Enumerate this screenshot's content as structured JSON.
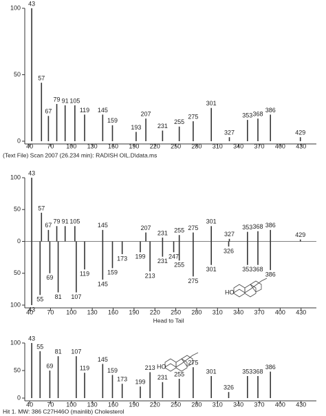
{
  "chart_data": [
    {
      "type": "spectrum",
      "caption": "(Text File) Scan 2007 (26.234 min): RADISH OIL.D\\data.ms",
      "xlim": [
        33,
        452
      ],
      "xticks": [
        40,
        70,
        100,
        130,
        160,
        190,
        220,
        250,
        280,
        310,
        340,
        370,
        400,
        430
      ],
      "ylim": [
        0,
        100
      ],
      "yticks": [
        0,
        50,
        100
      ],
      "color": "#333333",
      "series": [
        {
          "x": [
            43,
            57,
            67,
            79,
            91,
            105,
            119,
            145,
            159,
            193,
            207,
            231,
            255,
            275,
            301,
            327,
            353,
            368,
            386,
            429
          ],
          "values": [
            100,
            44,
            19,
            28,
            27,
            27,
            20,
            20,
            12,
            7,
            17,
            8,
            11,
            15,
            25,
            3,
            16,
            17,
            20,
            3
          ]
        }
      ]
    },
    {
      "type": "spectrum",
      "caption": "Head to Tail",
      "structure_label": "HO",
      "xlim": [
        33,
        452
      ],
      "xticks": [
        40,
        70,
        100,
        130,
        160,
        190,
        220,
        250,
        280,
        310,
        340,
        370,
        400,
        430
      ],
      "ylim": [
        -100,
        100
      ],
      "yticks": [
        {
          "value": -100,
          "label": "100"
        },
        {
          "value": -50,
          "label": "50"
        },
        0,
        50,
        100
      ],
      "color": "#333333",
      "series": [
        {
          "x": [
            43,
            57,
            67,
            79,
            91,
            105,
            145,
            207,
            231,
            255,
            275,
            301,
            327,
            353,
            368,
            386,
            429
          ],
          "values": [
            100,
            45,
            18,
            24,
            24,
            24,
            18,
            14,
            6,
            10,
            14,
            24,
            4,
            15,
            16,
            18,
            3
          ]
        },
        {
          "x": [
            43,
            55,
            69,
            81,
            107,
            119,
            145,
            159,
            173,
            199,
            213,
            231,
            247,
            255,
            275,
            301,
            326,
            353,
            368,
            386
          ],
          "values": [
            -100,
            -84,
            -50,
            -80,
            -80,
            -44,
            -60,
            -42,
            -20,
            -17,
            -47,
            -24,
            -17,
            -30,
            -55,
            -37,
            -8,
            -37,
            -37,
            -45
          ]
        }
      ]
    },
    {
      "type": "spectrum",
      "caption": "Hit 1. MW: 386 C27H46O (mainlib) Cholesterol",
      "structure_label": "HO",
      "xlim": [
        33,
        452
      ],
      "xticks": [
        40,
        70,
        100,
        130,
        160,
        190,
        220,
        250,
        280,
        310,
        340,
        370,
        400,
        430
      ],
      "ylim": [
        0,
        100
      ],
      "yticks": [
        0,
        50,
        100
      ],
      "color": "#333333",
      "series": [
        {
          "x": [
            43,
            55,
            69,
            81,
            107,
            119,
            145,
            159,
            173,
            199,
            213,
            231,
            255,
            275,
            301,
            326,
            353,
            368,
            386
          ],
          "values": [
            100,
            85,
            50,
            76,
            76,
            46,
            62,
            42,
            26,
            21,
            47,
            29,
            35,
            56,
            40,
            11,
            40,
            40,
            48
          ]
        }
      ]
    }
  ]
}
